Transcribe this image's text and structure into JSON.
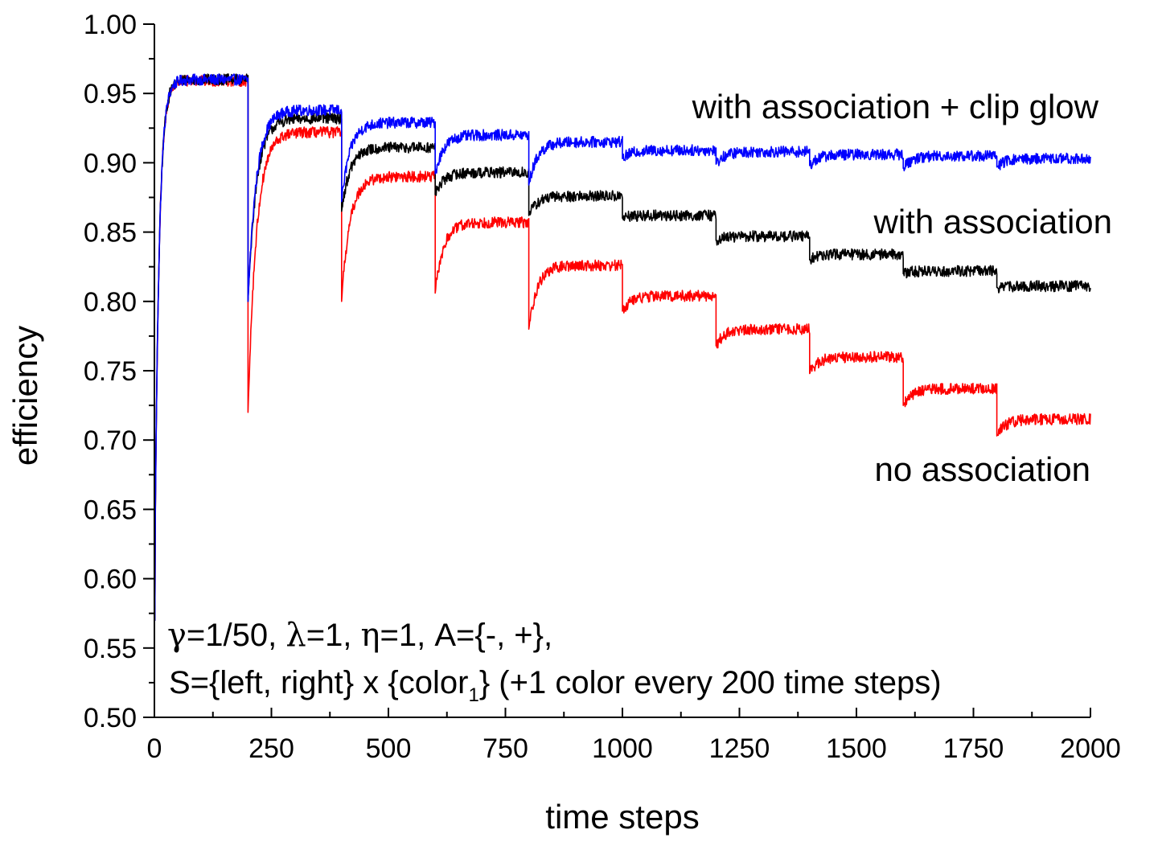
{
  "chart_data": {
    "type": "line",
    "title": "",
    "xlabel": "time steps",
    "ylabel": "efficiency",
    "xlim": [
      0,
      2000
    ],
    "ylim": [
      0.5,
      1.0
    ],
    "x_ticks": [
      "0",
      "250",
      "500",
      "750",
      "1000",
      "1250",
      "1500",
      "1750",
      "2000"
    ],
    "y_ticks": [
      "0.50",
      "0.55",
      "0.60",
      "0.65",
      "0.70",
      "0.75",
      "0.80",
      "0.85",
      "0.90",
      "0.95",
      "1.00"
    ],
    "grid": false,
    "colors": {
      "with_association_clip_glow": "#0000ff",
      "with_association": "#000000",
      "no_association": "#ff0000"
    },
    "series": [
      {
        "name": "with association + clip glow",
        "color": "#0000ff",
        "noise": 0.004,
        "segments": [
          {
            "start": 0,
            "end": 200,
            "drop": 0.57,
            "plateau": 0.96
          },
          {
            "start": 200,
            "end": 400,
            "drop": 0.8,
            "plateau": 0.938
          },
          {
            "start": 400,
            "end": 600,
            "drop": 0.872,
            "plateau": 0.929
          },
          {
            "start": 600,
            "end": 800,
            "drop": 0.892,
            "plateau": 0.92
          },
          {
            "start": 800,
            "end": 1000,
            "drop": 0.884,
            "plateau": 0.915
          },
          {
            "start": 1000,
            "end": 1200,
            "drop": 0.903,
            "plateau": 0.909
          },
          {
            "start": 1200,
            "end": 1400,
            "drop": 0.899,
            "plateau": 0.908
          },
          {
            "start": 1400,
            "end": 1600,
            "drop": 0.898,
            "plateau": 0.906
          },
          {
            "start": 1600,
            "end": 1800,
            "drop": 0.896,
            "plateau": 0.905
          },
          {
            "start": 1800,
            "end": 2000,
            "drop": 0.897,
            "plateau": 0.903
          }
        ]
      },
      {
        "name": "with association",
        "color": "#000000",
        "noise": 0.004,
        "segments": [
          {
            "start": 0,
            "end": 200,
            "drop": 0.57,
            "plateau": 0.96
          },
          {
            "start": 200,
            "end": 400,
            "drop": 0.8,
            "plateau": 0.932
          },
          {
            "start": 400,
            "end": 600,
            "drop": 0.865,
            "plateau": 0.911
          },
          {
            "start": 600,
            "end": 800,
            "drop": 0.877,
            "plateau": 0.893
          },
          {
            "start": 800,
            "end": 1000,
            "drop": 0.862,
            "plateau": 0.876
          },
          {
            "start": 1000,
            "end": 1200,
            "drop": 0.86,
            "plateau": 0.862
          },
          {
            "start": 1200,
            "end": 1400,
            "drop": 0.844,
            "plateau": 0.847
          },
          {
            "start": 1400,
            "end": 1600,
            "drop": 0.83,
            "plateau": 0.834
          },
          {
            "start": 1600,
            "end": 1800,
            "drop": 0.82,
            "plateau": 0.822
          },
          {
            "start": 1800,
            "end": 2000,
            "drop": 0.81,
            "plateau": 0.811
          }
        ]
      },
      {
        "name": "no association",
        "color": "#ff0000",
        "noise": 0.004,
        "segments": [
          {
            "start": 0,
            "end": 200,
            "drop": 0.57,
            "plateau": 0.959
          },
          {
            "start": 200,
            "end": 400,
            "drop": 0.72,
            "plateau": 0.922
          },
          {
            "start": 400,
            "end": 600,
            "drop": 0.8,
            "plateau": 0.89
          },
          {
            "start": 600,
            "end": 800,
            "drop": 0.806,
            "plateau": 0.857
          },
          {
            "start": 800,
            "end": 1000,
            "drop": 0.78,
            "plateau": 0.826
          },
          {
            "start": 1000,
            "end": 1200,
            "drop": 0.793,
            "plateau": 0.804
          },
          {
            "start": 1200,
            "end": 1400,
            "drop": 0.768,
            "plateau": 0.78
          },
          {
            "start": 1400,
            "end": 1600,
            "drop": 0.748,
            "plateau": 0.76
          },
          {
            "start": 1600,
            "end": 1800,
            "drop": 0.725,
            "plateau": 0.737
          },
          {
            "start": 1800,
            "end": 2000,
            "drop": 0.703,
            "plateau": 0.715
          }
        ]
      }
    ],
    "annotations": {
      "label_clip_glow": "with association + clip glow",
      "label_association": "with association",
      "label_no_association": "no association",
      "param_line1": {
        "gamma_symbol": "γ",
        "gamma_value": "=1/50, ",
        "lambda_symbol": "λ",
        "lambda_value": "=1, ",
        "eta_symbol": "η",
        "eta_value": "=1, A={-, +},"
      },
      "param_line2": {
        "prefix": "S={left, right} x {color",
        "subscript": "1",
        "suffix": "} (+1 color every 200 time steps)"
      }
    }
  }
}
